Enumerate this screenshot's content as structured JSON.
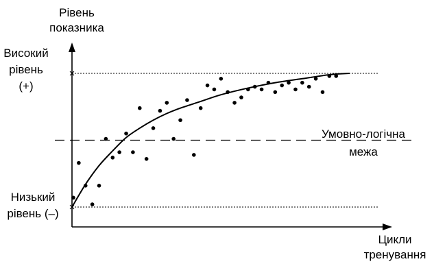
{
  "chart_data": {
    "type": "scatter",
    "title": "",
    "ylabel": [
      "Рівень",
      "показника"
    ],
    "xlabel": [
      "Цикли",
      "тренування"
    ],
    "xlim": [
      0,
      41
    ],
    "ylim": [
      0,
      10
    ],
    "grid": false,
    "y_levels": {
      "high": {
        "value": 10,
        "label_lines": [
          "Високий",
          "рівень",
          "(+)"
        ],
        "line_style": "dotted"
      },
      "threshold": {
        "value": 5,
        "label_lines": [
          "Умовно-логічна",
          "межа"
        ],
        "line_style": "dashed"
      },
      "low": {
        "value": 0,
        "label_lines": [
          "Низький",
          "рівень (–)"
        ],
        "line_style": "dotted"
      }
    },
    "series": [
      {
        "type": "scatter",
        "values": [
          [
            0.2,
            0.7
          ],
          [
            1,
            3.3
          ],
          [
            2,
            1.6
          ],
          [
            3,
            0.2
          ],
          [
            4,
            1.6
          ],
          [
            5,
            5.1
          ],
          [
            6,
            3.7
          ],
          [
            7,
            4.1
          ],
          [
            8,
            5.5
          ],
          [
            9,
            4.1
          ],
          [
            10,
            7.4
          ],
          [
            11,
            3.6
          ],
          [
            12,
            5.9
          ],
          [
            13,
            7.2
          ],
          [
            14,
            7.8
          ],
          [
            15,
            5.1
          ],
          [
            16,
            6.5
          ],
          [
            17,
            8
          ],
          [
            18,
            3.9
          ],
          [
            19,
            7.4
          ],
          [
            20,
            9.1
          ],
          [
            21,
            8.8
          ],
          [
            22,
            9.6
          ],
          [
            23,
            8.6
          ],
          [
            24,
            7.8
          ],
          [
            25,
            8.2
          ],
          [
            26,
            8.8
          ],
          [
            27,
            9
          ],
          [
            28,
            8.8
          ],
          [
            29,
            9.3
          ],
          [
            30,
            8.6
          ],
          [
            31,
            9.1
          ],
          [
            32,
            9.3
          ],
          [
            33,
            8.8
          ],
          [
            34,
            9.3
          ],
          [
            35,
            9
          ],
          [
            36,
            9.6
          ],
          [
            37,
            8.6
          ],
          [
            38,
            9.8
          ],
          [
            39,
            9.8
          ]
        ]
      },
      {
        "type": "line",
        "style": "smooth",
        "values": [
          [
            0,
            0
          ],
          [
            2,
            1.7
          ],
          [
            4,
            3.1
          ],
          [
            6,
            4.2
          ],
          [
            8,
            5.2
          ],
          [
            10,
            5.9
          ],
          [
            12,
            6.5
          ],
          [
            14,
            7
          ],
          [
            16,
            7.4
          ],
          [
            19,
            7.9
          ],
          [
            22,
            8.4
          ],
          [
            26,
            8.9
          ],
          [
            30,
            9.3
          ],
          [
            34,
            9.6
          ],
          [
            38,
            9.9
          ],
          [
            41,
            10
          ]
        ]
      }
    ]
  }
}
